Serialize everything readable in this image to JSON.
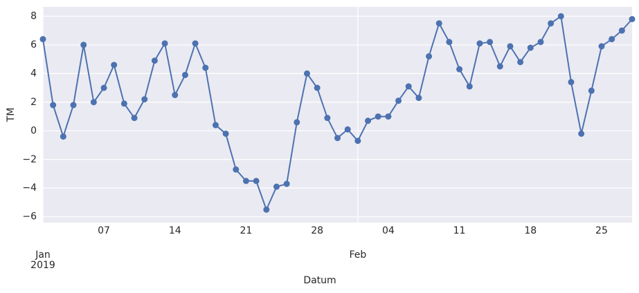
{
  "chart_data": {
    "type": "line",
    "xlabel": "Datum",
    "ylabel": "TM",
    "x": [
      "2019-01-01",
      "2019-01-02",
      "2019-01-03",
      "2019-01-04",
      "2019-01-05",
      "2019-01-06",
      "2019-01-07",
      "2019-01-08",
      "2019-01-09",
      "2019-01-10",
      "2019-01-11",
      "2019-01-12",
      "2019-01-13",
      "2019-01-14",
      "2019-01-15",
      "2019-01-16",
      "2019-01-17",
      "2019-01-18",
      "2019-01-19",
      "2019-01-20",
      "2019-01-21",
      "2019-01-22",
      "2019-01-23",
      "2019-01-24",
      "2019-01-25",
      "2019-01-26",
      "2019-01-27",
      "2019-01-28",
      "2019-01-29",
      "2019-01-30",
      "2019-01-31",
      "2019-02-01",
      "2019-02-02",
      "2019-02-03",
      "2019-02-04",
      "2019-02-05",
      "2019-02-06",
      "2019-02-07",
      "2019-02-08",
      "2019-02-09",
      "2019-02-10",
      "2019-02-11",
      "2019-02-12",
      "2019-02-13",
      "2019-02-14",
      "2019-02-15",
      "2019-02-16",
      "2019-02-17",
      "2019-02-18",
      "2019-02-19",
      "2019-02-20",
      "2019-02-21",
      "2019-02-22",
      "2019-02-23",
      "2019-02-24",
      "2019-02-25",
      "2019-02-26",
      "2019-02-27",
      "2019-02-28"
    ],
    "series": [
      {
        "color": "#4c72b0",
        "values": [
          6.4,
          1.8,
          -0.4,
          1.8,
          6.0,
          2.0,
          3.0,
          4.6,
          1.9,
          0.9,
          2.2,
          4.9,
          6.1,
          2.5,
          3.9,
          6.1,
          4.4,
          0.4,
          -0.2,
          -2.7,
          -3.5,
          -3.5,
          -5.5,
          -3.9,
          -3.7,
          0.6,
          4.0,
          3.0,
          0.9,
          -0.5,
          0.1,
          -0.7,
          0.7,
          1.0,
          1.0,
          2.1,
          3.1,
          2.3,
          5.2,
          7.5,
          6.2,
          4.3,
          3.1,
          6.1,
          6.2,
          4.5,
          5.9,
          4.8,
          5.8,
          6.2,
          7.5,
          8.0,
          3.4,
          -0.2,
          2.8,
          5.9,
          6.4,
          7.0,
          7.8
        ]
      }
    ],
    "xlim": [
      "2019-01-01",
      "2019-02-28"
    ],
    "xticks": [
      {
        "value": "2019-01-01",
        "label": "Jan\n2019"
      },
      {
        "value": "2019-02-01",
        "label": "Feb"
      }
    ],
    "xticks_minor": [
      {
        "value": "2019-01-07",
        "label": "07"
      },
      {
        "value": "2019-01-14",
        "label": "14"
      },
      {
        "value": "2019-01-21",
        "label": "21"
      },
      {
        "value": "2019-01-28",
        "label": "28"
      },
      {
        "value": "2019-02-04",
        "label": "04"
      },
      {
        "value": "2019-02-11",
        "label": "11"
      },
      {
        "value": "2019-02-18",
        "label": "18"
      },
      {
        "value": "2019-02-25",
        "label": "25"
      }
    ],
    "ylim": [
      -6.4,
      8.65
    ],
    "yticks": [
      {
        "value": -6,
        "label": "−6"
      },
      {
        "value": -4,
        "label": "−4"
      },
      {
        "value": -2,
        "label": "−2"
      },
      0,
      2,
      4,
      6,
      8
    ],
    "grid": true,
    "background": "#eaeaf2"
  }
}
